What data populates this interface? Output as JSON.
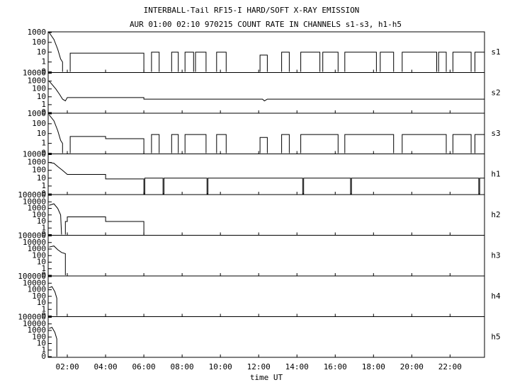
{
  "chart_data": {
    "type": "line",
    "title": "INTERBALL-Tail RF15-I HARD/SOFT X-RAY EMISSION",
    "subtitle": "AUR 01:00 02:10 970215  COUNT RATE IN CHANNELS s1-s3, h1-h5",
    "x_label": "time UT",
    "log_scale": true,
    "color": "#000000",
    "xlim": [
      1,
      23.8
    ],
    "xticks": [
      {
        "value": 2,
        "label": "02:00"
      },
      {
        "value": 4,
        "label": "04:00"
      },
      {
        "value": 6,
        "label": "06:00"
      },
      {
        "value": 8,
        "label": "08:00"
      },
      {
        "value": 10,
        "label": "10:00"
      },
      {
        "value": 12,
        "label": "12:00"
      },
      {
        "value": 14,
        "label": "14:00"
      },
      {
        "value": 16,
        "label": "16:00"
      },
      {
        "value": 18,
        "label": "18:00"
      },
      {
        "value": 20,
        "label": "20:00"
      },
      {
        "value": 22,
        "label": "22:00"
      }
    ],
    "panels": [
      {
        "name": "s1",
        "ylim": [
          0.1,
          1000
        ],
        "yticks": [
          {
            "value": 0.1,
            "label": "0"
          },
          1,
          10,
          100,
          1000
        ],
        "x": [
          1.05,
          1.3,
          1.5,
          1.65,
          1.75,
          1.75,
          1.8,
          2.15,
          2.15,
          6.0,
          6.0,
          6.1,
          6.4,
          6.4,
          6.8,
          6.8,
          6.9,
          7.45,
          7.45,
          7.8,
          7.8,
          7.9,
          8.15,
          8.15,
          8.6,
          8.6,
          8.65,
          8.7,
          8.7,
          9.25,
          9.25,
          9.3,
          9.8,
          9.8,
          10.3,
          10.3,
          10.4,
          12.07,
          12.07,
          12.45,
          12.45,
          12.5,
          13.2,
          13.2,
          13.6,
          13.6,
          13.7,
          14.2,
          14.2,
          15.2,
          15.2,
          15.25,
          15.35,
          15.35,
          16.15,
          16.15,
          16.2,
          16.5,
          16.5,
          18.15,
          18.15,
          18.2,
          18.35,
          18.35,
          19.05,
          19.05,
          19.1,
          19.5,
          19.5,
          21.3,
          21.3,
          21.35,
          21.4,
          21.4,
          21.8,
          21.8,
          21.9,
          22.15,
          22.15,
          23.1,
          23.1,
          23.2,
          23.3,
          23.3,
          23.8
        ],
        "values": [
          1000,
          200,
          20,
          2,
          1,
          0.1,
          null,
          0.1,
          8,
          8,
          0.1,
          null,
          0.1,
          10,
          10,
          0.1,
          null,
          0.1,
          10,
          10,
          0.1,
          null,
          0.1,
          10,
          10,
          0.1,
          null,
          0.1,
          10,
          10,
          0.1,
          null,
          0.1,
          10,
          10,
          0.1,
          null,
          0.1,
          5,
          5,
          0.1,
          null,
          0.1,
          10,
          10,
          0.1,
          null,
          0.1,
          10,
          10,
          0.1,
          null,
          0.1,
          10,
          10,
          0.1,
          null,
          0.1,
          10,
          10,
          0.1,
          null,
          0.1,
          10,
          10,
          0.1,
          null,
          0.1,
          10,
          10,
          0.1,
          null,
          0.1,
          10,
          10,
          0.1,
          null,
          0.1,
          10,
          10,
          0.1,
          null,
          0.1,
          10,
          10
        ]
      },
      {
        "name": "s2",
        "ylim": [
          0.1,
          10000
        ],
        "yticks": [
          {
            "value": 0.1,
            "label": "0"
          },
          1,
          10,
          100,
          1000,
          10000
        ],
        "x": [
          1.05,
          1.4,
          1.6,
          1.75,
          1.9,
          2.0,
          6.0,
          6.0,
          12.2,
          12.3,
          12.45,
          23.8
        ],
        "values": [
          1000,
          100,
          20,
          5,
          3,
          8,
          8,
          5,
          5,
          3,
          5,
          5
        ]
      },
      {
        "name": "s3",
        "ylim": [
          0.1,
          1000
        ],
        "yticks": [
          {
            "value": 0.1,
            "label": "0"
          },
          1,
          10,
          100,
          1000
        ],
        "x": [
          1.05,
          1.3,
          1.5,
          1.65,
          1.75,
          1.75,
          1.8,
          2.15,
          2.15,
          4.0,
          4.0,
          6.0,
          6.0,
          6.1,
          6.4,
          6.4,
          6.8,
          6.8,
          6.9,
          7.45,
          7.45,
          7.8,
          7.8,
          7.9,
          8.15,
          8.15,
          9.25,
          9.25,
          9.3,
          9.8,
          9.8,
          10.3,
          10.3,
          10.4,
          12.07,
          12.07,
          12.45,
          12.45,
          12.5,
          13.2,
          13.2,
          13.6,
          13.6,
          13.7,
          14.2,
          14.2,
          16.15,
          16.15,
          16.2,
          16.5,
          16.5,
          19.05,
          19.05,
          19.1,
          19.5,
          19.5,
          21.8,
          21.8,
          21.9,
          22.15,
          22.15,
          23.1,
          23.1,
          23.2,
          23.3,
          23.3,
          23.8
        ],
        "values": [
          800,
          200,
          20,
          2,
          1,
          0.1,
          null,
          0.1,
          5,
          5,
          3,
          3,
          0.1,
          null,
          0.1,
          8,
          8,
          0.1,
          null,
          0.1,
          8,
          8,
          0.1,
          null,
          0.1,
          8,
          8,
          0.1,
          null,
          0.1,
          8,
          8,
          0.1,
          null,
          0.1,
          4,
          4,
          0.1,
          null,
          0.1,
          8,
          8,
          0.1,
          null,
          0.1,
          8,
          8,
          0.1,
          null,
          0.1,
          8,
          8,
          0.1,
          null,
          0.1,
          8,
          8,
          0.1,
          null,
          0.1,
          8,
          8,
          0.1,
          null,
          0.1,
          8,
          8
        ]
      },
      {
        "name": "h1",
        "ylim": [
          0.1,
          10000
        ],
        "yticks": [
          {
            "value": 0.1,
            "label": "0"
          },
          1,
          10,
          100,
          1000,
          10000
        ],
        "x": [
          1.05,
          1.3,
          1.5,
          1.75,
          2.0,
          4.0,
          4.0,
          6.0,
          6.0,
          6.05,
          6.05,
          7.0,
          7.0,
          7.05,
          7.05,
          9.3,
          9.3,
          9.35,
          9.35,
          14.3,
          14.3,
          14.35,
          14.35,
          16.8,
          16.8,
          16.85,
          16.85,
          23.5,
          23.5,
          23.55,
          23.55,
          23.8
        ],
        "values": [
          1000,
          800,
          300,
          100,
          30,
          30,
          8,
          8,
          0.1,
          0.1,
          10,
          10,
          0.1,
          0.1,
          10,
          10,
          0.1,
          0.1,
          10,
          10,
          0.1,
          0.1,
          10,
          10,
          0.1,
          0.1,
          10,
          10,
          0.1,
          0.1,
          10,
          10
        ]
      },
      {
        "name": "h2",
        "ylim": [
          0.1,
          100000
        ],
        "yticks": [
          {
            "value": 0.1,
            "label": "0"
          },
          1,
          10,
          100,
          1000,
          10000,
          100000
        ],
        "x": [
          1.05,
          1.3,
          1.5,
          1.65,
          1.7,
          1.7,
          1.75,
          1.9,
          1.9,
          2.0,
          2.0,
          4.0,
          4.0,
          6.0,
          6.0
        ],
        "values": [
          3000,
          5000,
          1000,
          100,
          0.1,
          0.1,
          null,
          0.1,
          10,
          10,
          50,
          50,
          10,
          10,
          0.1
        ]
      },
      {
        "name": "h3",
        "ylim": [
          0.1,
          100000
        ],
        "yticks": [
          {
            "value": 0.1,
            "label": "0"
          },
          1,
          10,
          100,
          1000,
          10000,
          100000
        ],
        "x": [
          1.05,
          1.3,
          1.5,
          1.7,
          1.9,
          1.9
        ],
        "values": [
          2000,
          3000,
          800,
          300,
          200,
          0.1
        ]
      },
      {
        "name": "h4",
        "ylim": [
          0.1,
          100000
        ],
        "yticks": [
          {
            "value": 0.1,
            "label": "0"
          },
          1,
          10,
          100,
          1000,
          10000,
          100000
        ],
        "x": [
          1.05,
          1.2,
          1.35,
          1.45,
          1.45
        ],
        "values": [
          2000,
          3000,
          500,
          50,
          0.1
        ]
      },
      {
        "name": "h5",
        "ylim": [
          0.1,
          100000
        ],
        "yticks": [
          {
            "value": 0.1,
            "label": "0"
          },
          1,
          10,
          100,
          1000,
          10000,
          100000
        ],
        "x": [
          1.05,
          1.2,
          1.35,
          1.45,
          1.45
        ],
        "values": [
          2000,
          3000,
          500,
          50,
          0.1
        ]
      }
    ]
  }
}
